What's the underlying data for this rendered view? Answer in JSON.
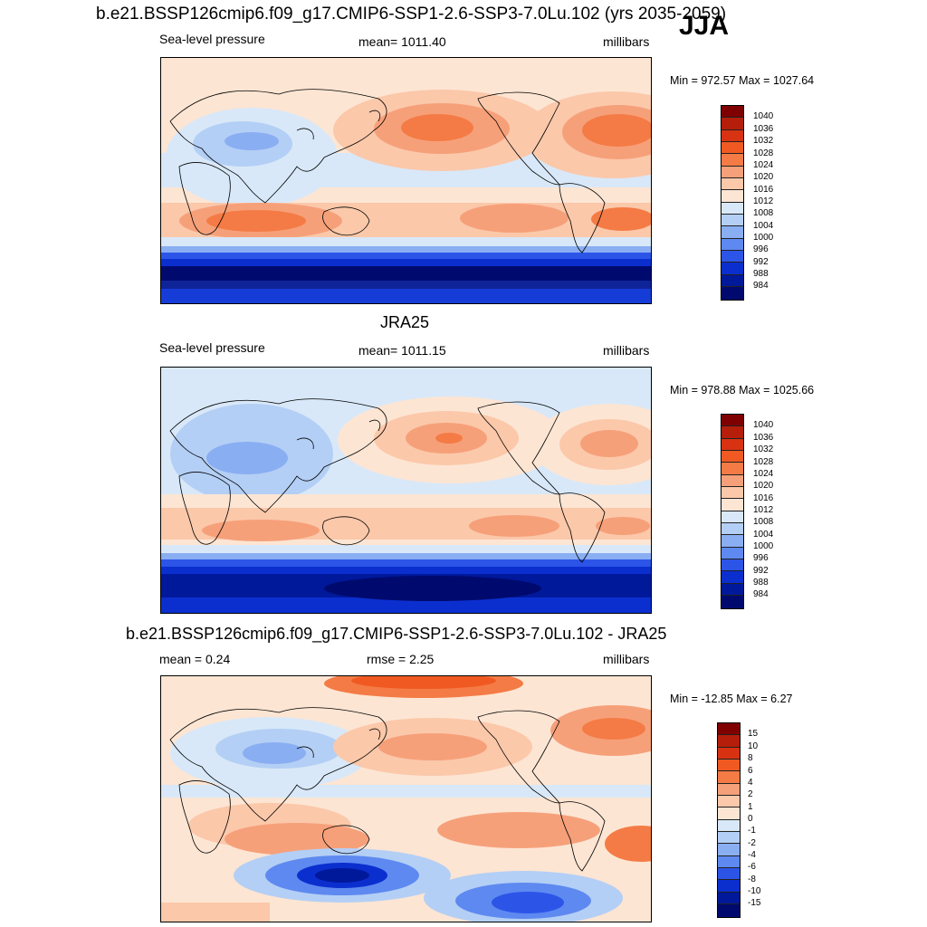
{
  "header": {
    "title": "b.e21.BSSP126cmip6.f09_g17.CMIP6-SSP1-2.6-SSP3-7.0Lu.102 (yrs 2035-2059)",
    "season": "JJA"
  },
  "panels": [
    {
      "id": "model",
      "title": "",
      "left_label": "Sea-level pressure",
      "center_label": "mean= 1011.40",
      "right_label": "millibars",
      "minmax": "Min = 972.57 Max = 1027.64",
      "colorbar_labels": [
        "1040",
        "1036",
        "1032",
        "1028",
        "1024",
        "1020",
        "1016",
        "1012",
        "1008",
        "1004",
        "1000",
        "996",
        "992",
        "988",
        "984"
      ]
    },
    {
      "id": "obs",
      "title": "JRA25",
      "left_label": "Sea-level pressure",
      "center_label": "mean= 1011.15",
      "right_label": "millibars",
      "minmax": "Min = 978.88 Max = 1025.66",
      "colorbar_labels": [
        "1040",
        "1036",
        "1032",
        "1028",
        "1024",
        "1020",
        "1016",
        "1012",
        "1008",
        "1004",
        "1000",
        "996",
        "992",
        "988",
        "984"
      ]
    },
    {
      "id": "diff",
      "title": "b.e21.BSSP126cmip6.f09_g17.CMIP6-SSP1-2.6-SSP3-7.0Lu.102 - JRA25",
      "left_label": "mean =   0.24",
      "center_label": "rmse =   2.25",
      "right_label": "millibars",
      "minmax": "Min = -12.85 Max =   6.27",
      "colorbar_labels": [
        "15",
        "10",
        "8",
        "6",
        "4",
        "2",
        "1",
        "0",
        "-1",
        "-2",
        "-4",
        "-6",
        "-8",
        "-10",
        "-15"
      ]
    }
  ],
  "colors": {
    "palette": [
      "#7f0000",
      "#b51e0a",
      "#d83212",
      "#f05a22",
      "#f47b45",
      "#f6a07a",
      "#fbc8aa",
      "#fde5d3",
      "#d8e8f8",
      "#b4cff5",
      "#8aaef2",
      "#5e89f0",
      "#2c55e8",
      "#0b2fcf",
      "#00189a",
      "#000a6e"
    ]
  }
}
